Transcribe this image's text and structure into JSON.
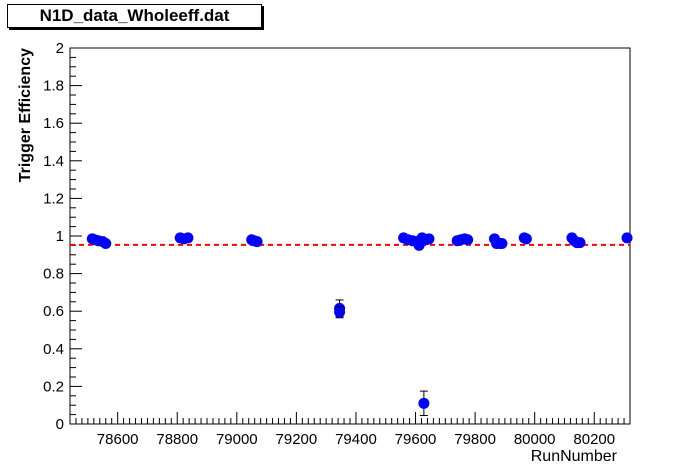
{
  "title": "N1D_data_Wholeeff.dat",
  "chart_data": {
    "type": "scatter",
    "title": "N1D_data_Wholeeff.dat",
    "xlabel": "RunNumber",
    "ylabel": "Trigger Efficiency",
    "xlim": [
      78440,
      80320
    ],
    "ylim": [
      0,
      2
    ],
    "x_ticks": [
      78600,
      78800,
      79000,
      79200,
      79400,
      79600,
      79800,
      80000,
      80200
    ],
    "y_ticks": [
      0,
      0.2,
      0.4,
      0.6,
      0.8,
      1,
      1.2,
      1.4,
      1.6,
      1.8,
      2
    ],
    "y_tick_labels": [
      "0",
      "0.2",
      "0.4",
      "0.6",
      "0.8",
      "1",
      "1.2",
      "1.4",
      "1.6",
      "1.8",
      "2"
    ],
    "points": [
      {
        "x": 78515,
        "y": 0.985,
        "err": 0.008
      },
      {
        "x": 78522,
        "y": 0.98,
        "err": 0.008
      },
      {
        "x": 78535,
        "y": 0.975,
        "err": 0.008
      },
      {
        "x": 78550,
        "y": 0.97,
        "err": 0.008
      },
      {
        "x": 78560,
        "y": 0.96,
        "err": 0.008
      },
      {
        "x": 78810,
        "y": 0.99,
        "err": 0.008
      },
      {
        "x": 78822,
        "y": 0.985,
        "err": 0.008
      },
      {
        "x": 78836,
        "y": 0.99,
        "err": 0.008
      },
      {
        "x": 79050,
        "y": 0.98,
        "err": 0.008
      },
      {
        "x": 79058,
        "y": 0.975,
        "err": 0.008
      },
      {
        "x": 79068,
        "y": 0.97,
        "err": 0.008
      },
      {
        "x": 79345,
        "y": 0.615,
        "err": 0.045
      },
      {
        "x": 79345,
        "y": 0.595,
        "err": 0.03
      },
      {
        "x": 79560,
        "y": 0.99,
        "err": 0.008
      },
      {
        "x": 79575,
        "y": 0.98,
        "err": 0.008
      },
      {
        "x": 79590,
        "y": 0.975,
        "err": 0.008
      },
      {
        "x": 79605,
        "y": 0.97,
        "err": 0.008
      },
      {
        "x": 79612,
        "y": 0.95,
        "err": 0.01
      },
      {
        "x": 79622,
        "y": 0.99,
        "err": 0.008
      },
      {
        "x": 79628,
        "y": 0.11,
        "err": 0.065
      },
      {
        "x": 79635,
        "y": 0.98,
        "err": 0.008
      },
      {
        "x": 79645,
        "y": 0.985,
        "err": 0.008
      },
      {
        "x": 79740,
        "y": 0.975,
        "err": 0.008
      },
      {
        "x": 79752,
        "y": 0.98,
        "err": 0.008
      },
      {
        "x": 79765,
        "y": 0.985,
        "err": 0.008
      },
      {
        "x": 79775,
        "y": 0.98,
        "err": 0.008
      },
      {
        "x": 79865,
        "y": 0.985,
        "err": 0.008
      },
      {
        "x": 79872,
        "y": 0.96,
        "err": 0.008
      },
      {
        "x": 79882,
        "y": 0.96,
        "err": 0.008
      },
      {
        "x": 79890,
        "y": 0.96,
        "err": 0.008
      },
      {
        "x": 79965,
        "y": 0.99,
        "err": 0.008
      },
      {
        "x": 79972,
        "y": 0.985,
        "err": 0.008
      },
      {
        "x": 80125,
        "y": 0.99,
        "err": 0.008
      },
      {
        "x": 80133,
        "y": 0.975,
        "err": 0.008
      },
      {
        "x": 80142,
        "y": 0.965,
        "err": 0.008
      },
      {
        "x": 80152,
        "y": 0.965,
        "err": 0.008
      },
      {
        "x": 80310,
        "y": 0.99,
        "err": 0.008
      }
    ],
    "reference_line": {
      "y": 0.953,
      "color": "#ff0000",
      "style": "dashed"
    },
    "marker_color": "#0000ff",
    "grid": false,
    "legend": "none"
  }
}
